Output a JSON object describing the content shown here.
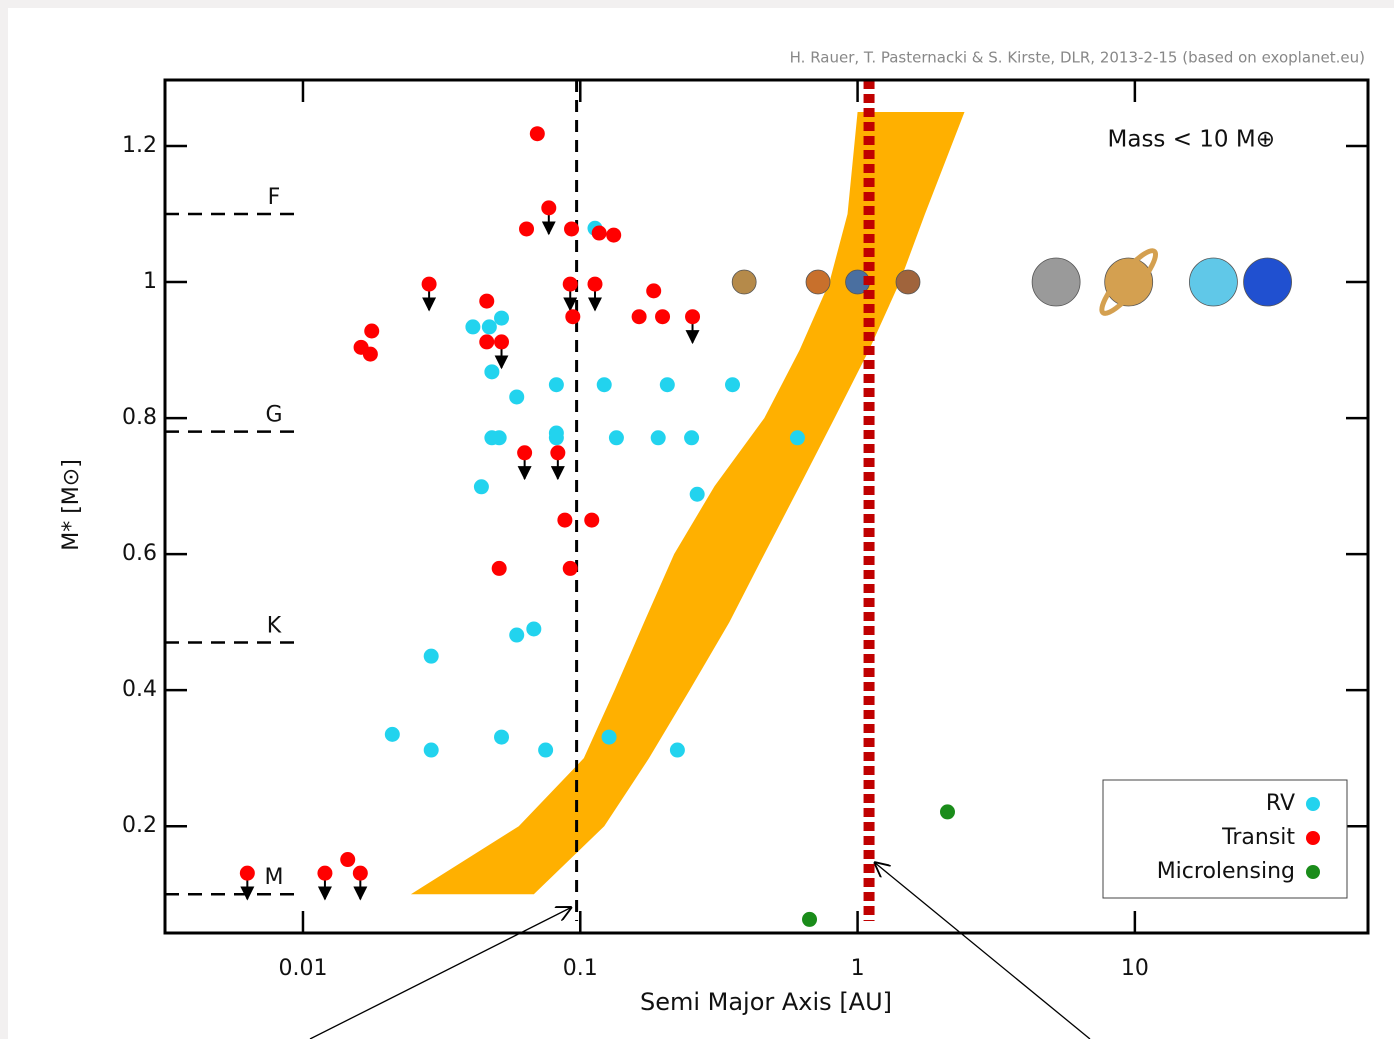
{
  "chart_data": {
    "type": "scatter",
    "credit": "H. Rauer, T. Pasternacki & S. Kirste, DLR, 2013-2-15 (based on exoplanet.eu)",
    "annotation": "Mass < 10 M⊕",
    "xlabel": "Semi Major Axis [AU]",
    "ylabel": "M* [M⊙]",
    "log_x": true,
    "xlim": [
      0.00318,
      69.3
    ],
    "ylim": [
      0.043,
      1.297
    ],
    "xticks": [
      0.01,
      0.1,
      1,
      10
    ],
    "yticks": [
      0.2,
      0.4,
      0.6,
      0.8,
      1,
      1.2
    ],
    "legend": "lower right",
    "series": [
      {
        "name": "RV",
        "color": "#22d3ee",
        "x": [
          0.041,
          0.047,
          0.052,
          0.048,
          0.059,
          0.082,
          0.122,
          0.206,
          0.354,
          0.048,
          0.051,
          0.082,
          0.082,
          0.135,
          0.191,
          0.252,
          0.607,
          0.044,
          0.264,
          0.059,
          0.068,
          0.029,
          0.021,
          0.029,
          0.052,
          0.075,
          0.127,
          0.224,
          0.113
        ],
        "values": [
          0.934,
          0.934,
          0.947,
          0.868,
          0.831,
          0.849,
          0.849,
          0.849,
          0.849,
          0.771,
          0.771,
          0.778,
          0.771,
          0.771,
          0.771,
          0.771,
          0.771,
          0.699,
          0.688,
          0.481,
          0.49,
          0.45,
          0.335,
          0.312,
          0.331,
          0.312,
          0.331,
          0.312,
          1.079
        ]
      },
      {
        "name": "Transit",
        "color": "#ff0000",
        "x": [
          0.07,
          0.077,
          0.064,
          0.093,
          0.117,
          0.132,
          0.0285,
          0.092,
          0.113,
          0.046,
          0.184,
          0.094,
          0.163,
          0.198,
          0.254,
          0.0177,
          0.0162,
          0.0175,
          0.046,
          0.052,
          0.063,
          0.083,
          0.088,
          0.11,
          0.051,
          0.092,
          0.0063,
          0.012,
          0.0145,
          0.0161
        ],
        "values": [
          1.218,
          1.109,
          1.078,
          1.078,
          1.072,
          1.069,
          0.997,
          0.997,
          0.997,
          0.972,
          0.987,
          0.949,
          0.949,
          0.949,
          0.949,
          0.928,
          0.904,
          0.894,
          0.912,
          0.912,
          0.749,
          0.749,
          0.65,
          0.65,
          0.579,
          0.579,
          0.131,
          0.131,
          0.151,
          0.131
        ],
        "upper_limit": [
          false,
          true,
          false,
          false,
          false,
          false,
          true,
          true,
          true,
          false,
          false,
          false,
          false,
          false,
          true,
          false,
          false,
          false,
          false,
          true,
          true,
          true,
          false,
          false,
          false,
          false,
          true,
          true,
          false,
          true
        ]
      },
      {
        "name": "Microlensing",
        "color": "#1a8c1a",
        "x": [
          2.11,
          0.671
        ],
        "values": [
          0.221,
          0.063
        ]
      }
    ],
    "habitable_zone": {
      "color": "#ffb000",
      "y": [
        0.1,
        0.2,
        0.3,
        0.4,
        0.5,
        0.6,
        0.7,
        0.8,
        0.9,
        1.0,
        1.1,
        1.25
      ],
      "inner_x": [
        0.0245,
        0.06,
        0.103,
        0.133,
        0.17,
        0.218,
        0.305,
        0.461,
        0.618,
        0.792,
        0.92,
        1.0
      ],
      "outer_x": [
        0.068,
        0.122,
        0.177,
        0.248,
        0.345,
        0.461,
        0.618,
        0.826,
        1.1,
        1.42,
        1.75,
        2.43
      ]
    },
    "reference_lines": [
      {
        "x": 0.097,
        "color": "#000000",
        "style": "dashed"
      },
      {
        "x": 1.1,
        "color": "#c00000",
        "style": "dotted"
      }
    ],
    "spectral_types": {
      "labels": [
        "F",
        "G",
        "K",
        "M"
      ],
      "values": [
        1.1,
        0.78,
        0.47,
        0.1
      ]
    },
    "solar_system": {
      "value": 1,
      "x": [
        0.39,
        0.72,
        1,
        1.52,
        5.2,
        9.5,
        19.2,
        30.1
      ],
      "colors": [
        "#b58a4a",
        "#c8702c",
        "#4a6fa0",
        "#a0643c",
        "#9a9a9a",
        "#d4a050",
        "#60c8e8",
        "#2050d0"
      ]
    }
  }
}
